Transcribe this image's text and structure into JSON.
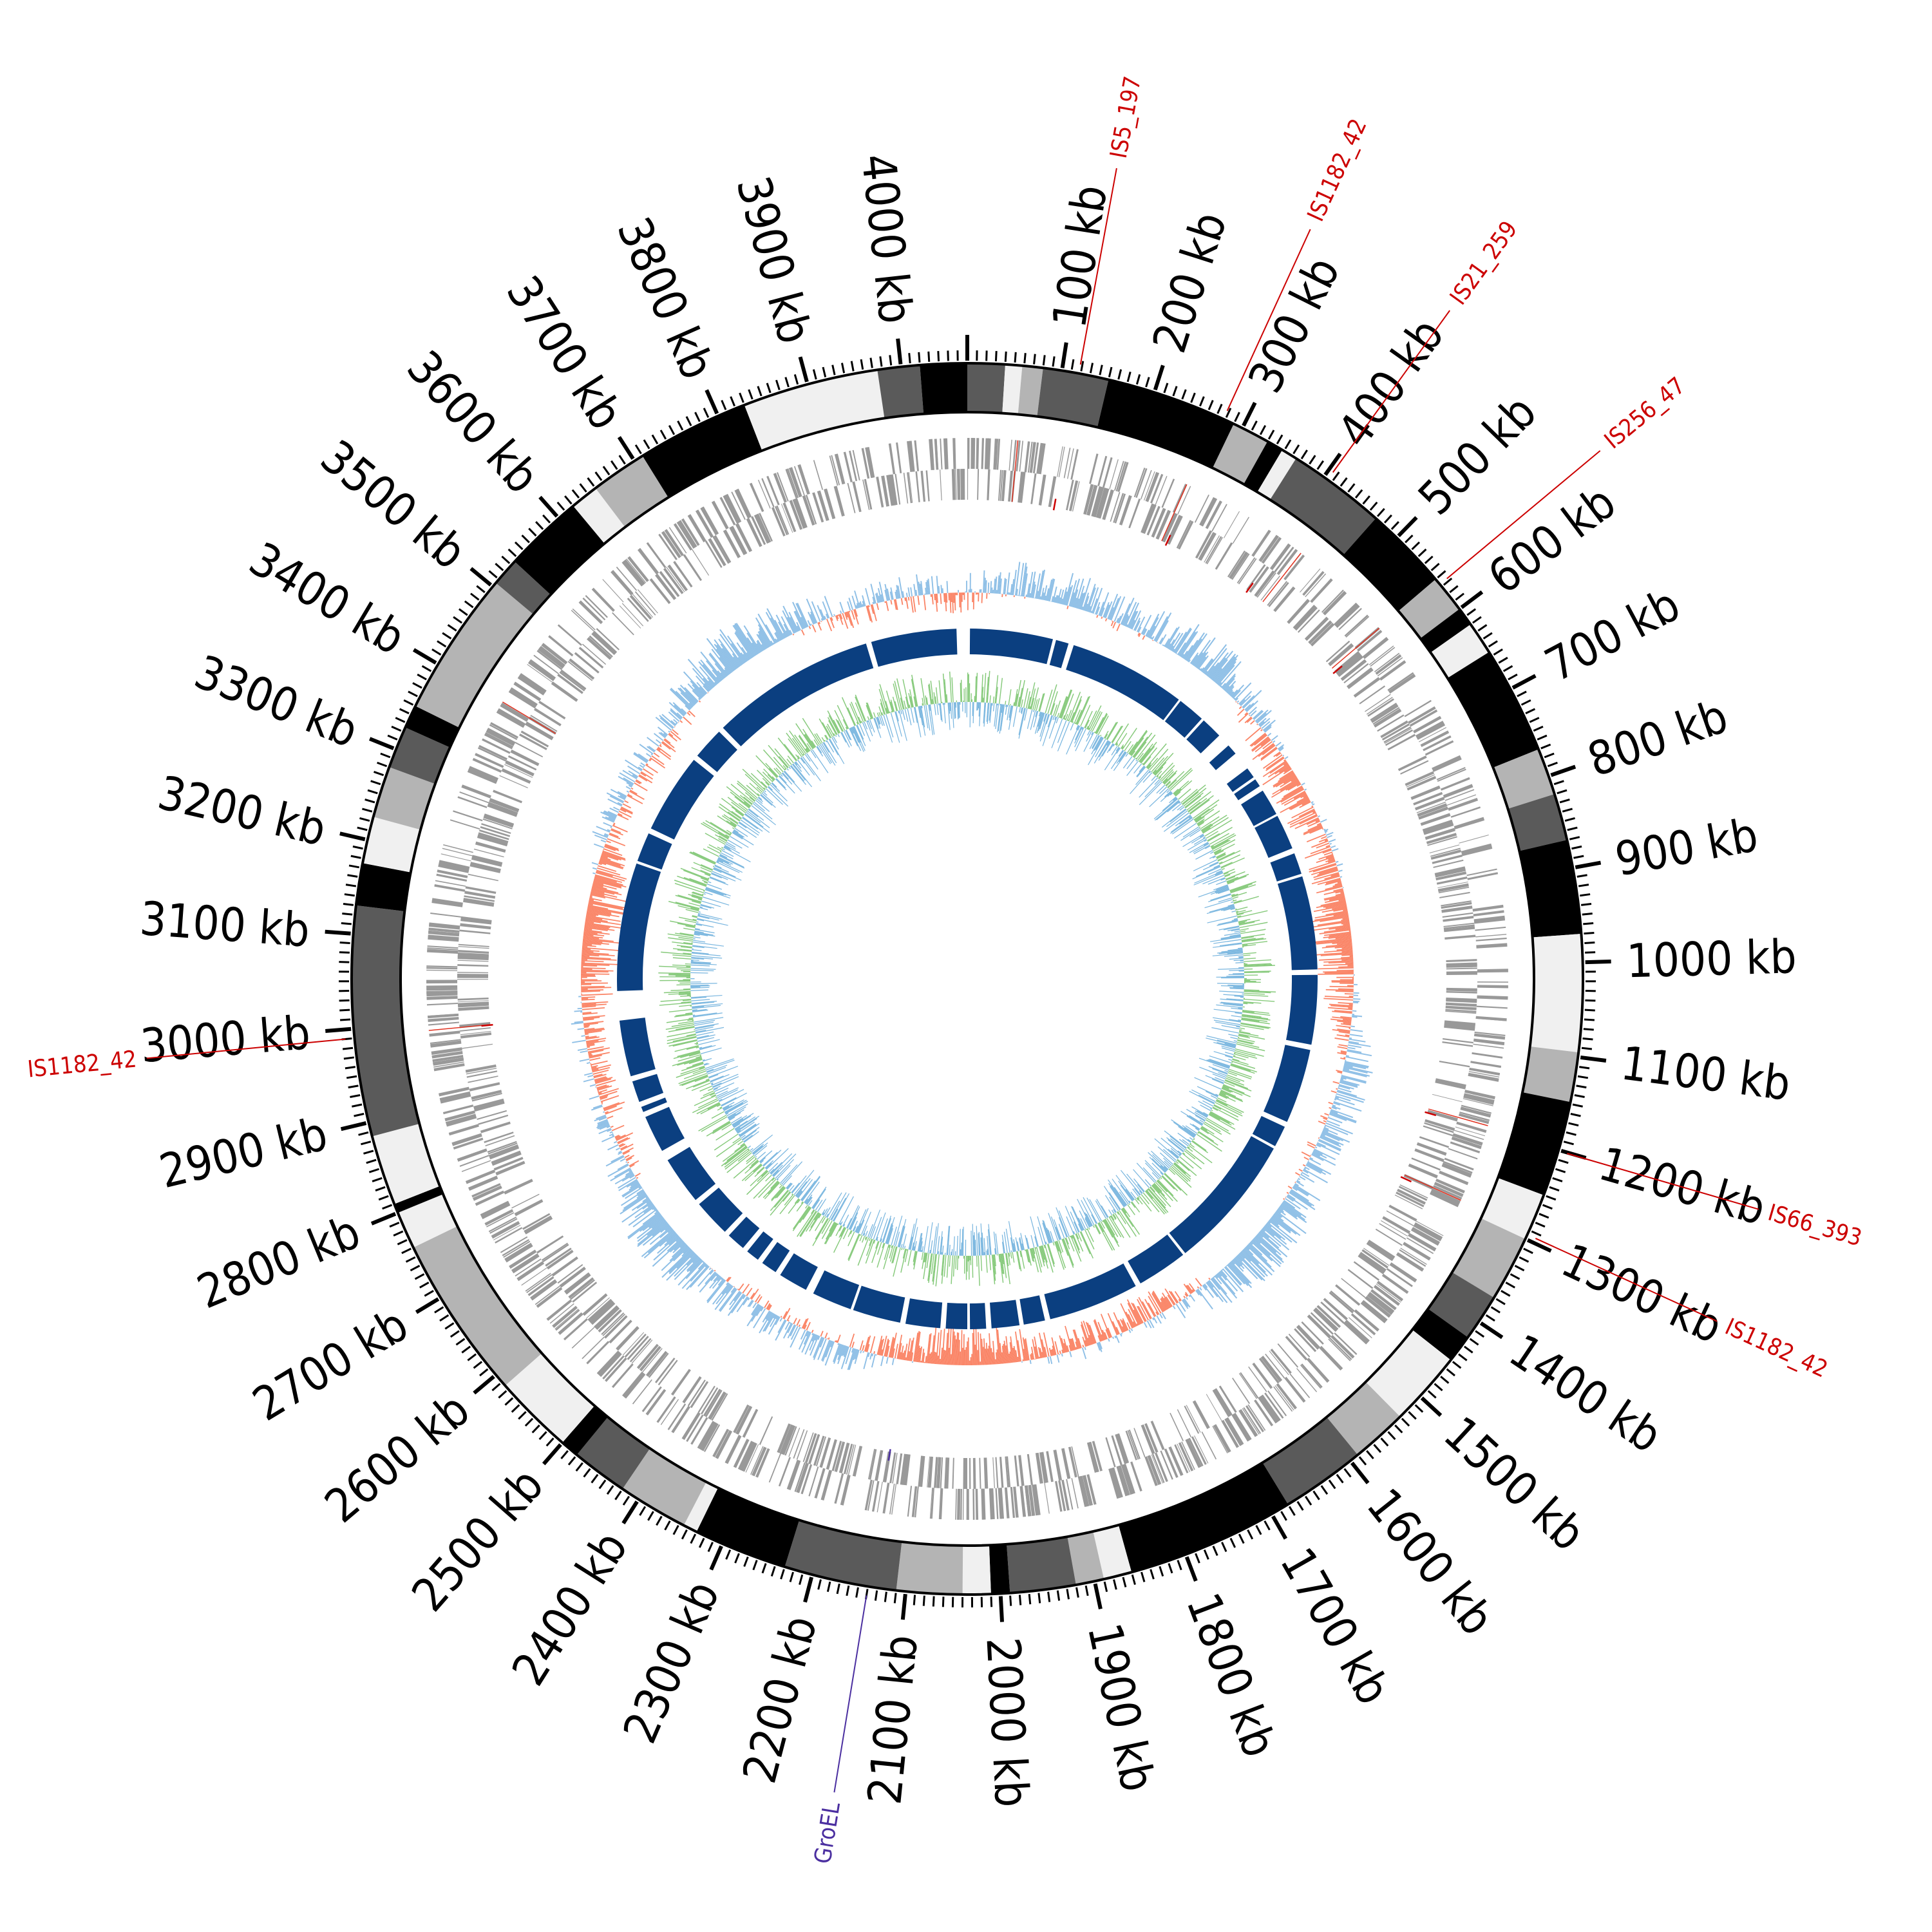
{
  "genome": {
    "length_kb": 4070,
    "ticks_kb": [
      100,
      200,
      300,
      400,
      500,
      600,
      700,
      800,
      900,
      1000,
      1100,
      1200,
      1300,
      1400,
      1500,
      1600,
      1700,
      1800,
      1900,
      2000,
      2100,
      2200,
      2300,
      2400,
      2500,
      2600,
      2700,
      2800,
      2900,
      3000,
      3100,
      3200,
      3300,
      3400,
      3500,
      3600,
      3700,
      3800,
      3900,
      4000
    ],
    "tick_unit": "kb"
  },
  "features": [
    {
      "label": "IS5_197",
      "position_kb": 118,
      "color": "#cc0000"
    },
    {
      "label": "IS1182_42",
      "position_kb": 278,
      "color": "#cc0000"
    },
    {
      "label": "IS21_259",
      "position_kb": 405,
      "color": "#cc0000"
    },
    {
      "label": "IS256_47",
      "position_kb": 567,
      "color": "#cc0000"
    },
    {
      "label": "IS66_393",
      "position_kb": 1201,
      "color": "#cc0000"
    },
    {
      "label": "IS1182_42",
      "position_kb": 1295,
      "color": "#cc0000"
    },
    {
      "label": "IS1182_42",
      "position_kb": 2990,
      "color": "#cc0000"
    },
    {
      "label": "GroEL",
      "position_kb": 2140,
      "color": "#4b2fa0"
    }
  ],
  "colors": {
    "gc_content_low": "#fa8466",
    "gc_content_high": "#8ebfe6",
    "gc_skew_positive": "#85c97a",
    "gc_skew_negative": "#79b6df",
    "genes": "#999999",
    "inner_blocks": "#0b3f80",
    "ideogram_shades": [
      "#000000",
      "#5a5a5a",
      "#b4b4b4",
      "#f0f0f0"
    ]
  }
}
